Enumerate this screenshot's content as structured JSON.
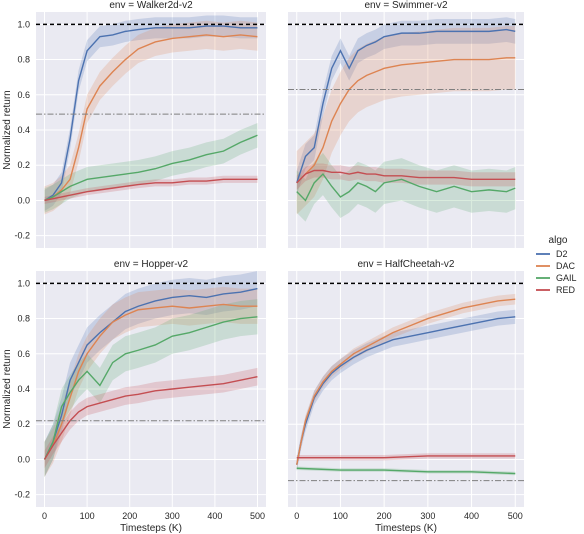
{
  "chart_data": {
    "type": "line",
    "legend": {
      "title": "algo",
      "placement": "right",
      "entries": [
        {
          "name": "D2",
          "color": "#4c72b0"
        },
        {
          "name": "DAC",
          "color": "#dd8452"
        },
        {
          "name": "GAIL",
          "color": "#55a868"
        },
        {
          "name": "RED",
          "color": "#c44e52"
        }
      ]
    },
    "xlabel": "Timesteps (K)",
    "ylabel": "Normalized return",
    "xlim": [
      -20,
      520
    ],
    "ylim": [
      -0.27,
      1.07
    ],
    "xticks": [
      "0",
      "100",
      "200",
      "300",
      "400",
      "500"
    ],
    "yticks": [
      "-0.2",
      "0.0",
      "0.2",
      "0.4",
      "0.6",
      "0.8",
      "1.0"
    ],
    "grid": true,
    "panels": [
      {
        "title": "env = Walker2d-v2",
        "expert_level": 1.0,
        "random_level": 0.49,
        "series": [
          {
            "name": "D2",
            "x": [
              0,
              20,
              40,
              60,
              80,
              100,
              130,
              160,
              190,
              220,
              260,
              300,
              340,
              380,
              420,
              460,
              500
            ],
            "y": [
              0,
              0.03,
              0.1,
              0.35,
              0.68,
              0.85,
              0.93,
              0.94,
              0.96,
              0.97,
              0.98,
              0.98,
              0.98,
              0.99,
              0.99,
              0.98,
              0.98
            ],
            "band": 0.06
          },
          {
            "name": "DAC",
            "x": [
              0,
              20,
              40,
              60,
              80,
              100,
              130,
              160,
              190,
              220,
              260,
              300,
              340,
              380,
              420,
              460,
              500
            ],
            "y": [
              0,
              0.02,
              0.06,
              0.12,
              0.3,
              0.52,
              0.65,
              0.73,
              0.8,
              0.86,
              0.9,
              0.92,
              0.93,
              0.94,
              0.93,
              0.94,
              0.93
            ],
            "band": 0.08
          },
          {
            "name": "GAIL",
            "x": [
              0,
              20,
              40,
              60,
              80,
              100,
              130,
              160,
              190,
              220,
              260,
              300,
              340,
              380,
              420,
              460,
              500
            ],
            "y": [
              0,
              0.02,
              0.05,
              0.08,
              0.1,
              0.12,
              0.13,
              0.14,
              0.15,
              0.16,
              0.18,
              0.21,
              0.23,
              0.26,
              0.28,
              0.33,
              0.37
            ],
            "band": 0.07
          },
          {
            "name": "RED",
            "x": [
              0,
              20,
              40,
              60,
              80,
              100,
              130,
              160,
              190,
              220,
              260,
              300,
              340,
              380,
              420,
              460,
              500
            ],
            "y": [
              0,
              0.01,
              0.02,
              0.03,
              0.04,
              0.05,
              0.06,
              0.07,
              0.08,
              0.09,
              0.1,
              0.1,
              0.11,
              0.11,
              0.12,
              0.12,
              0.12
            ],
            "band": 0.02
          }
        ]
      },
      {
        "title": "env = Swimmer-v2",
        "expert_level": 1.0,
        "random_level": 0.63,
        "series": [
          {
            "name": "D2",
            "x": [
              0,
              20,
              40,
              60,
              80,
              100,
              120,
              140,
              160,
              180,
              200,
              240,
              280,
              320,
              360,
              400,
              440,
              480,
              500
            ],
            "y": [
              0.1,
              0.25,
              0.3,
              0.55,
              0.75,
              0.85,
              0.75,
              0.85,
              0.88,
              0.9,
              0.93,
              0.95,
              0.95,
              0.96,
              0.96,
              0.96,
              0.96,
              0.97,
              0.96
            ],
            "band": 0.07
          },
          {
            "name": "DAC",
            "x": [
              0,
              20,
              40,
              60,
              80,
              100,
              120,
              140,
              160,
              180,
              200,
              240,
              280,
              320,
              360,
              400,
              440,
              480,
              500
            ],
            "y": [
              0.1,
              0.15,
              0.2,
              0.3,
              0.45,
              0.55,
              0.63,
              0.68,
              0.71,
              0.73,
              0.75,
              0.77,
              0.78,
              0.79,
              0.8,
              0.8,
              0.8,
              0.81,
              0.81
            ],
            "band": 0.18
          },
          {
            "name": "GAIL",
            "x": [
              0,
              20,
              40,
              60,
              80,
              100,
              120,
              140,
              160,
              180,
              200,
              240,
              280,
              320,
              360,
              400,
              440,
              480,
              500
            ],
            "y": [
              0.05,
              0,
              0.1,
              0.15,
              0.08,
              0.02,
              0.05,
              0.1,
              0.08,
              0.05,
              0.1,
              0.12,
              0.08,
              0.05,
              0.08,
              0.05,
              0.06,
              0.05,
              0.07
            ],
            "band": 0.12
          },
          {
            "name": "RED",
            "x": [
              0,
              20,
              40,
              60,
              80,
              100,
              120,
              140,
              160,
              180,
              200,
              240,
              280,
              320,
              360,
              400,
              440,
              480,
              500
            ],
            "y": [
              0.1,
              0.15,
              0.17,
              0.17,
              0.16,
              0.16,
              0.15,
              0.16,
              0.15,
              0.15,
              0.14,
              0.14,
              0.13,
              0.13,
              0.13,
              0.12,
              0.12,
              0.12,
              0.12
            ],
            "band": 0.04
          }
        ]
      },
      {
        "title": "env = Hopper-v2",
        "expert_level": 1.0,
        "random_level": 0.22,
        "series": [
          {
            "name": "D2",
            "x": [
              0,
              20,
              40,
              60,
              80,
              100,
              130,
              160,
              190,
              220,
              260,
              300,
              340,
              380,
              420,
              460,
              500
            ],
            "y": [
              0,
              0.1,
              0.25,
              0.45,
              0.55,
              0.65,
              0.72,
              0.78,
              0.84,
              0.87,
              0.9,
              0.92,
              0.93,
              0.92,
              0.94,
              0.95,
              0.97
            ],
            "band": 0.1
          },
          {
            "name": "DAC",
            "x": [
              0,
              20,
              40,
              60,
              80,
              100,
              130,
              160,
              190,
              220,
              260,
              300,
              340,
              380,
              420,
              460,
              500
            ],
            "y": [
              0,
              0.08,
              0.2,
              0.35,
              0.5,
              0.6,
              0.7,
              0.78,
              0.82,
              0.85,
              0.86,
              0.87,
              0.86,
              0.87,
              0.88,
              0.87,
              0.87
            ],
            "band": 0.1
          },
          {
            "name": "GAIL",
            "x": [
              0,
              20,
              40,
              60,
              80,
              100,
              130,
              160,
              190,
              220,
              260,
              300,
              340,
              380,
              420,
              460,
              500
            ],
            "y": [
              0,
              0.1,
              0.3,
              0.38,
              0.45,
              0.5,
              0.42,
              0.55,
              0.6,
              0.62,
              0.65,
              0.7,
              0.72,
              0.75,
              0.78,
              0.8,
              0.81
            ],
            "band": 0.1
          },
          {
            "name": "RED",
            "x": [
              0,
              20,
              40,
              60,
              80,
              100,
              130,
              160,
              190,
              220,
              260,
              300,
              340,
              380,
              420,
              460,
              500
            ],
            "y": [
              0,
              0.08,
              0.15,
              0.22,
              0.27,
              0.3,
              0.32,
              0.34,
              0.36,
              0.37,
              0.39,
              0.4,
              0.41,
              0.42,
              0.43,
              0.45,
              0.47
            ],
            "band": 0.05
          }
        ]
      },
      {
        "title": "env = HalfCheetah-v2",
        "expert_level": 1.0,
        "random_level": -0.12,
        "series": [
          {
            "name": "D2",
            "x": [
              0,
              10,
              20,
              40,
              60,
              80,
              100,
              130,
              160,
              190,
              220,
              260,
              300,
              340,
              380,
              420,
              460,
              500
            ],
            "y": [
              -0.03,
              0.1,
              0.2,
              0.35,
              0.43,
              0.49,
              0.53,
              0.58,
              0.62,
              0.65,
              0.68,
              0.7,
              0.72,
              0.74,
              0.76,
              0.78,
              0.8,
              0.81
            ],
            "band": 0.04
          },
          {
            "name": "DAC",
            "x": [
              0,
              10,
              20,
              40,
              60,
              80,
              100,
              130,
              160,
              190,
              220,
              260,
              300,
              340,
              380,
              420,
              460,
              500
            ],
            "y": [
              -0.03,
              0.1,
              0.22,
              0.36,
              0.44,
              0.5,
              0.54,
              0.6,
              0.64,
              0.68,
              0.72,
              0.76,
              0.8,
              0.83,
              0.86,
              0.88,
              0.9,
              0.91
            ],
            "band": 0.03
          },
          {
            "name": "GAIL",
            "x": [
              0,
              100,
              200,
              300,
              400,
              500
            ],
            "y": [
              -0.05,
              -0.06,
              -0.06,
              -0.07,
              -0.07,
              -0.08
            ],
            "band": 0.01
          },
          {
            "name": "RED",
            "x": [
              0,
              100,
              200,
              300,
              400,
              500
            ],
            "y": [
              0.01,
              0.01,
              0.01,
              0.02,
              0.02,
              0.02
            ],
            "band": 0.015
          }
        ]
      }
    ]
  }
}
